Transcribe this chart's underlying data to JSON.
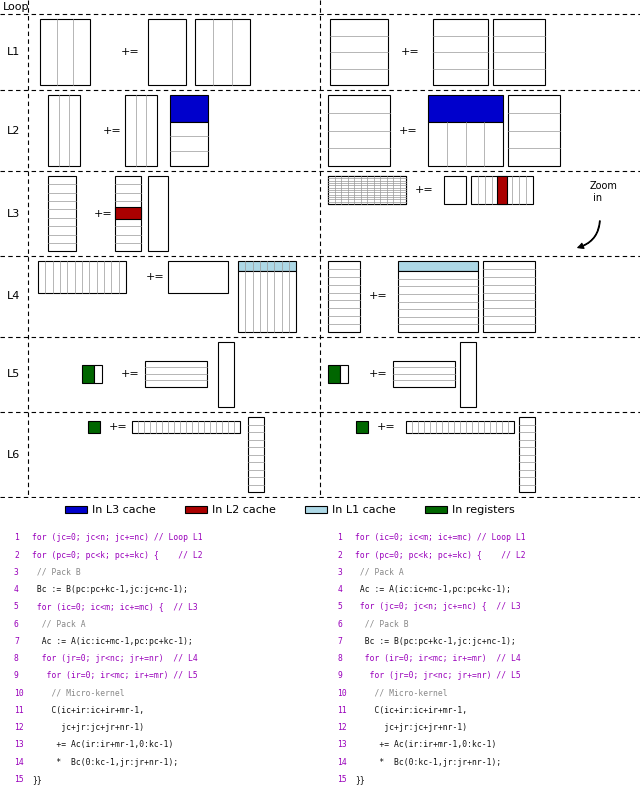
{
  "colors": {
    "blue": "#0000CC",
    "red": "#AA0000",
    "lightblue": "#ADD8E6",
    "green": "#006600",
    "white": "#FFFFFF",
    "black": "#000000",
    "stripe": "#AAAAAA",
    "code_bg": "#DDDDDD",
    "code_border": "#666666"
  },
  "legend": [
    {
      "color": "#0000CC",
      "label": "In L3 cache"
    },
    {
      "color": "#AA0000",
      "label": "In L2 cache"
    },
    {
      "color": "#ADD8E6",
      "label": "In L1 cache"
    },
    {
      "color": "#006600",
      "label": "In registers"
    }
  ],
  "code_left": [
    {
      "num": "1",
      "text": "for (jc=0; jc<n; jc+=nc) // Loop L1",
      "color": "blue"
    },
    {
      "num": "2",
      "text": "for (pc=0; pc<k; pc+=kc) {    // L2",
      "color": "blue"
    },
    {
      "num": "3",
      "text": " // Pack B",
      "color": "gray"
    },
    {
      "num": "4",
      "text": " Bc := B(pc:pc+kc-1,jc:jc+nc-1);",
      "color": "black"
    },
    {
      "num": "5",
      "text": " for (ic=0; ic<m; ic+=mc) {  // L3",
      "color": "blue"
    },
    {
      "num": "6",
      "text": "  // Pack A",
      "color": "gray"
    },
    {
      "num": "7",
      "text": "  Ac := A(ic:ic+mc-1,pc:pc+kc-1);",
      "color": "black"
    },
    {
      "num": "8",
      "text": "  for (jr=0; jr<nc; jr+=nr)  // L4",
      "color": "blue"
    },
    {
      "num": "9",
      "text": "   for (ir=0; ir<mc; ir+=mr) // L5",
      "color": "blue"
    },
    {
      "num": "10",
      "text": "    // Micro-kernel",
      "color": "gray"
    },
    {
      "num": "11",
      "text": "    C(ic+ir:ic+ir+mr-1,",
      "color": "black"
    },
    {
      "num": "12",
      "text": "      jc+jr:jc+jr+nr-1)",
      "color": "black"
    },
    {
      "num": "13",
      "text": "     += Ac(ir:ir+mr-1,0:kc-1)",
      "color": "black"
    },
    {
      "num": "14",
      "text": "     *  Bc(0:kc-1,jr:jr+nr-1);",
      "color": "black"
    },
    {
      "num": "15",
      "text": "}}",
      "color": "black"
    }
  ],
  "code_right": [
    {
      "num": "1",
      "text": "for (ic=0; ic<m; ic+=mc) // Loop L1",
      "color": "blue"
    },
    {
      "num": "2",
      "text": "for (pc=0; pc<k; pc+=kc) {    // L2",
      "color": "blue"
    },
    {
      "num": "3",
      "text": " // Pack A",
      "color": "gray"
    },
    {
      "num": "4",
      "text": " Ac := A(ic:ic+mc-1,pc:pc+kc-1);",
      "color": "black"
    },
    {
      "num": "5",
      "text": " for (jc=0; jc<n; jc+=nc) {  // L3",
      "color": "blue"
    },
    {
      "num": "6",
      "text": "  // Pack B",
      "color": "gray"
    },
    {
      "num": "7",
      "text": "  Bc := B(pc:pc+kc-1,jc:jc+nc-1);",
      "color": "black"
    },
    {
      "num": "8",
      "text": "  for (ir=0; ir<mc; ir+=mr)  // L4",
      "color": "blue"
    },
    {
      "num": "9",
      "text": "   for (jr=0; jr<nc; jr+=nr) // L5",
      "color": "blue"
    },
    {
      "num": "10",
      "text": "    // Micro-kernel",
      "color": "gray"
    },
    {
      "num": "11",
      "text": "    C(ic+ir:ic+ir+mr-1,",
      "color": "black"
    },
    {
      "num": "12",
      "text": "      jc+jr:jc+jr+nr-1)",
      "color": "black"
    },
    {
      "num": "13",
      "text": "     += Ac(ir:ir+mr-1,0:kc-1)",
      "color": "black"
    },
    {
      "num": "14",
      "text": "     *  Bc(0:kc-1,jr:jr+nr-1);",
      "color": "black"
    },
    {
      "num": "15",
      "text": "}}",
      "color": "black"
    }
  ]
}
